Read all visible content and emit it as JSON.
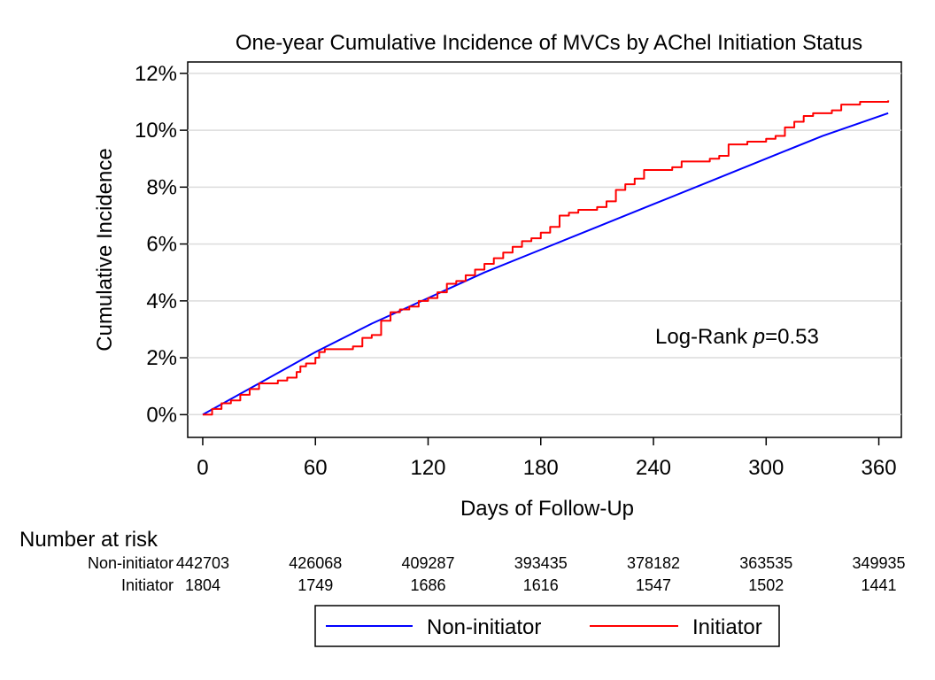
{
  "chart_data": {
    "type": "line",
    "title": "One-year Cumulative Incidence of MVCs by AChel Initiation Status",
    "xlabel": "Days of Follow-Up",
    "ylabel": "Cumulative Incidence",
    "xlim": [
      -8,
      372
    ],
    "ylim": [
      -0.8,
      12.4
    ],
    "xticks": [
      0,
      60,
      120,
      180,
      240,
      300,
      360
    ],
    "yticks": [
      0,
      2,
      4,
      6,
      8,
      10,
      12
    ],
    "ytick_suffix": "%",
    "grid": "horizontal",
    "annotation": {
      "prefix": "Log-Rank ",
      "italic": "p",
      "suffix": "=0.53"
    },
    "series": [
      {
        "name": "Non-initiator",
        "color": "#0000ff",
        "x": [
          0,
          30,
          60,
          90,
          120,
          150,
          180,
          210,
          240,
          270,
          300,
          330,
          365
        ],
        "y": [
          0,
          1.1,
          2.2,
          3.2,
          4.1,
          5.0,
          5.8,
          6.6,
          7.4,
          8.2,
          9.0,
          9.8,
          10.6
        ]
      },
      {
        "name": "Initiator",
        "color": "#ff0000",
        "step": true,
        "x": [
          0,
          5,
          10,
          15,
          20,
          25,
          30,
          40,
          45,
          50,
          52,
          55,
          60,
          62,
          65,
          70,
          75,
          80,
          85,
          90,
          95,
          100,
          105,
          110,
          115,
          120,
          125,
          130,
          135,
          140,
          145,
          150,
          155,
          160,
          165,
          170,
          175,
          180,
          185,
          190,
          195,
          200,
          210,
          215,
          220,
          225,
          230,
          235,
          240,
          250,
          255,
          260,
          270,
          275,
          280,
          285,
          290,
          300,
          305,
          310,
          315,
          320,
          325,
          330,
          335,
          340,
          345,
          350,
          355,
          365
        ],
        "y": [
          0,
          0.2,
          0.4,
          0.5,
          0.7,
          0.9,
          1.1,
          1.2,
          1.3,
          1.5,
          1.7,
          1.8,
          2.0,
          2.2,
          2.3,
          2.3,
          2.3,
          2.4,
          2.7,
          2.8,
          3.3,
          3.6,
          3.7,
          3.8,
          4.0,
          4.1,
          4.3,
          4.6,
          4.7,
          4.9,
          5.1,
          5.3,
          5.5,
          5.7,
          5.9,
          6.1,
          6.2,
          6.4,
          6.6,
          7.0,
          7.1,
          7.2,
          7.3,
          7.5,
          7.9,
          8.1,
          8.3,
          8.6,
          8.6,
          8.7,
          8.9,
          8.9,
          9.0,
          9.1,
          9.5,
          9.5,
          9.6,
          9.7,
          9.8,
          10.1,
          10.3,
          10.5,
          10.6,
          10.6,
          10.7,
          10.9,
          10.9,
          11.0,
          11.0,
          11.05
        ]
      }
    ],
    "risk_table": {
      "header": "Number at risk",
      "times": [
        0,
        60,
        120,
        180,
        240,
        300,
        360
      ],
      "rows": [
        {
          "label": "Non-initiator",
          "values": [
            "442703",
            "426068",
            "409287",
            "393435",
            "378182",
            "363535",
            "349935"
          ]
        },
        {
          "label": "Initiator",
          "values": [
            "1804",
            "1749",
            "1686",
            "1616",
            "1547",
            "1502",
            "1441"
          ]
        }
      ]
    },
    "legend": {
      "position": "bottom",
      "entries": [
        {
          "label": "Non-initiator",
          "color": "#0000ff"
        },
        {
          "label": "Initiator",
          "color": "#ff0000"
        }
      ]
    }
  }
}
